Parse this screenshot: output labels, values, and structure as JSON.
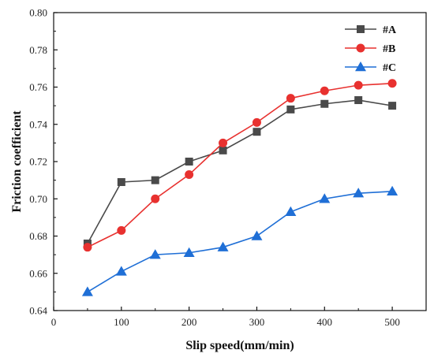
{
  "chart_data": {
    "type": "line",
    "xlabel": "Slip speed(mm/min)",
    "ylabel": "Friction coefficient",
    "xlim": [
      0,
      550
    ],
    "ylim": [
      0.64,
      0.8
    ],
    "xticks": [
      "0",
      "100",
      "200",
      "300",
      "400",
      "500"
    ],
    "yticks": [
      "0.64",
      "0.66",
      "0.68",
      "0.70",
      "0.72",
      "0.74",
      "0.76",
      "0.78",
      "0.80"
    ],
    "x": [
      50,
      100,
      150,
      200,
      250,
      300,
      350,
      400,
      450,
      500
    ],
    "grid": false,
    "legend_position": "top-right",
    "series": [
      {
        "name": "#A",
        "marker": "square",
        "color": "#4a4a4a",
        "values": [
          0.676,
          0.709,
          0.71,
          0.72,
          0.726,
          0.736,
          0.748,
          0.751,
          0.753,
          0.75
        ]
      },
      {
        "name": "#B",
        "marker": "circle",
        "color": "#e8312f",
        "values": [
          0.674,
          0.683,
          0.7,
          0.713,
          0.73,
          0.741,
          0.754,
          0.758,
          0.761,
          0.762
        ]
      },
      {
        "name": "#C",
        "marker": "triangle",
        "color": "#1f6fd6",
        "values": [
          0.65,
          0.661,
          0.67,
          0.671,
          0.674,
          0.68,
          0.693,
          0.7,
          0.703,
          0.704
        ]
      }
    ]
  }
}
